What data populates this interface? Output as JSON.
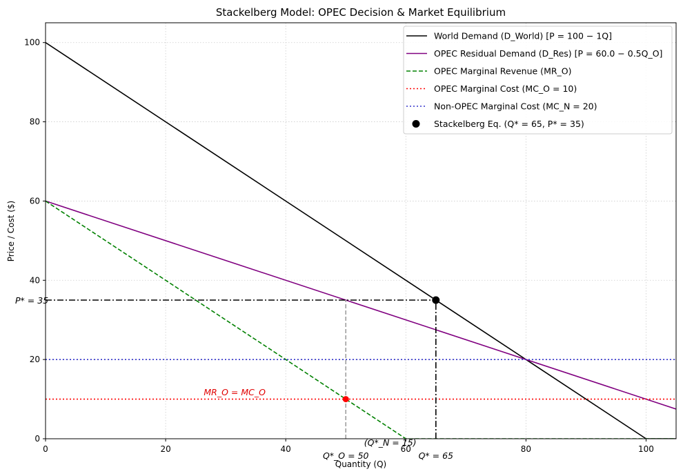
{
  "chart_data": {
    "type": "line",
    "title": "Stackelberg Model: OPEC Decision & Market Equilibrium",
    "xlabel": "Quantity (Q)",
    "ylabel": "Price / Cost ($)",
    "xlim": [
      0,
      105
    ],
    "ylim": [
      0,
      105
    ],
    "xticks": [
      0,
      20,
      40,
      60,
      80,
      100
    ],
    "yticks": [
      0,
      20,
      40,
      60,
      80,
      100
    ],
    "grid": true,
    "legend_position": "upper-right",
    "series": [
      {
        "name": "World Demand (D_World) [P = 100 − 1Q]",
        "style": "solid",
        "color": "#000000",
        "x": [
          0,
          100,
          105
        ],
        "y": [
          100,
          0,
          0
        ]
      },
      {
        "name": "OPEC Residual Demand (D_Res) [P = 60.0 − 0.5Q_O]",
        "style": "solid",
        "color": "#800080",
        "x": [
          0,
          105
        ],
        "y": [
          60,
          7.5
        ]
      },
      {
        "name": "OPEC Marginal Revenue (MR_O)",
        "style": "dashed",
        "color": "#008000",
        "x": [
          0,
          60,
          105
        ],
        "y": [
          60,
          0,
          0
        ]
      },
      {
        "name": "OPEC Marginal Cost (MC_O = 10)",
        "style": "dotted",
        "color": "#ff0000",
        "x": [
          0,
          105
        ],
        "y": [
          10,
          10
        ]
      },
      {
        "name": "Non-OPEC Marginal Cost (MC_N = 20)",
        "style": "dotted",
        "color": "#3333cc",
        "x": [
          0,
          105
        ],
        "y": [
          20,
          20
        ]
      },
      {
        "name": "Stackelberg Eq. (Q* = 65, P* = 35)",
        "style": "marker",
        "color": "#000000",
        "x": [
          65
        ],
        "y": [
          35
        ]
      }
    ],
    "guides": [
      {
        "kind": "dashdot",
        "color": "#000000",
        "x": [
          0,
          65
        ],
        "y": [
          35,
          35
        ]
      },
      {
        "kind": "dashdot",
        "color": "#000000",
        "x": [
          65,
          65
        ],
        "y": [
          0,
          35
        ]
      },
      {
        "kind": "dashed",
        "color": "#999999",
        "x": [
          50,
          50
        ],
        "y": [
          0,
          35
        ]
      }
    ],
    "points": [
      {
        "x": 50,
        "y": 10,
        "color": "#ff0000"
      }
    ],
    "annotations": {
      "p_star": "P* = 35",
      "q_opec": "Q*_O = 50",
      "q_non_opec": "(Q*_N = 15)",
      "q_star": "Q* = 65",
      "mr_mc": "MR_O = MC_O"
    }
  }
}
